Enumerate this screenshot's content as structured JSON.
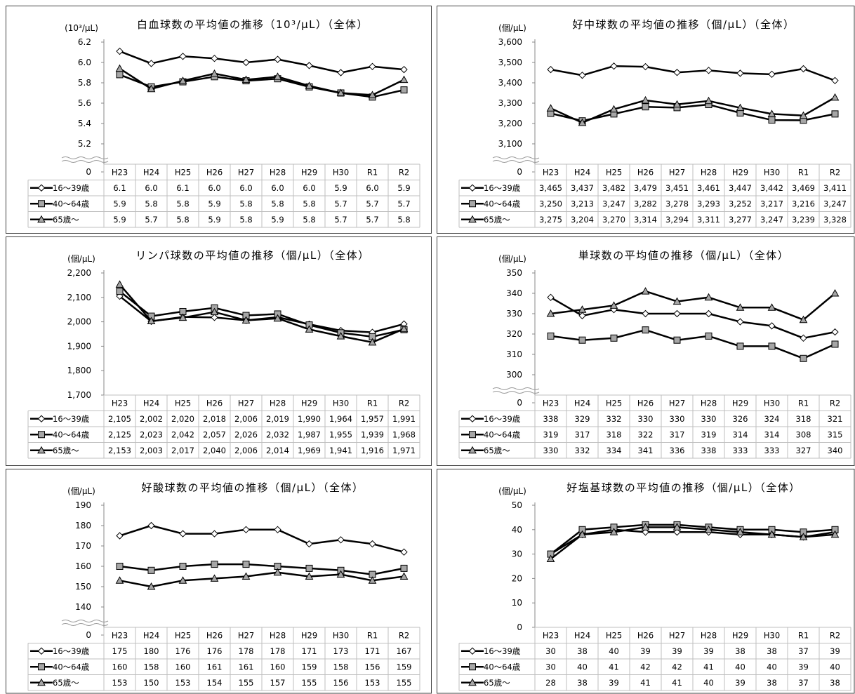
{
  "chart_data": [
    {
      "type": "line",
      "title": "白血球数の平均値の推移（10³/μL）（全体）",
      "ylabel": "(10³/μL)",
      "categories": [
        "H23",
        "H24",
        "H25",
        "H26",
        "H27",
        "H28",
        "H29",
        "H30",
        "R1",
        "R2"
      ],
      "series": [
        {
          "name": "16～39歳",
          "color": "#000000",
          "marker": "diamond",
          "marker_fill": "#ffffff",
          "values": [
            6.11,
            5.99,
            6.06,
            6.04,
            6.0,
            6.03,
            5.97,
            5.9,
            5.96,
            5.93
          ],
          "value_labels": [
            "6.1",
            "6.0",
            "6.1",
            "6.0",
            "6.0",
            "6.0",
            "6.0",
            "5.9",
            "6.0",
            "5.9"
          ]
        },
        {
          "name": "40～64歳",
          "color": "#000000",
          "marker": "square",
          "marker_fill": "#a6a6a6",
          "values": [
            5.88,
            5.76,
            5.81,
            5.86,
            5.82,
            5.84,
            5.76,
            5.7,
            5.66,
            5.73
          ],
          "value_labels": [
            "5.9",
            "5.8",
            "5.8",
            "5.9",
            "5.8",
            "5.8",
            "5.8",
            "5.7",
            "5.7",
            "5.7"
          ]
        },
        {
          "name": "65歳～",
          "color": "#000000",
          "marker": "triangle",
          "marker_fill": "#a6a6a6",
          "values": [
            5.94,
            5.74,
            5.82,
            5.89,
            5.83,
            5.86,
            5.77,
            5.7,
            5.68,
            5.83
          ],
          "value_labels": [
            "5.9",
            "5.7",
            "5.8",
            "5.9",
            "5.8",
            "5.9",
            "5.8",
            "5.7",
            "5.7",
            "5.8"
          ]
        }
      ],
      "ylim": [
        5.0,
        6.2
      ],
      "yticks": [
        0,
        5.2,
        5.4,
        5.6,
        5.8,
        {
          "value": 6,
          "label": "6.0"
        },
        6.2
      ],
      "axis_break": true,
      "grid": false
    },
    {
      "type": "line",
      "title": "好中球数の平均値の推移（個/μL）（全体）",
      "ylabel": "(個/μL)",
      "categories": [
        "H23",
        "H24",
        "H25",
        "H26",
        "H27",
        "H28",
        "H29",
        "H30",
        "R1",
        "R2"
      ],
      "series": [
        {
          "name": "16～39歳",
          "color": "#000000",
          "marker": "diamond",
          "marker_fill": "#ffffff",
          "values": [
            3465,
            3437,
            3482,
            3479,
            3451,
            3461,
            3447,
            3442,
            3469,
            3411
          ],
          "value_labels": [
            "3,465",
            "3,437",
            "3,482",
            "3,479",
            "3,451",
            "3,461",
            "3,447",
            "3,442",
            "3,469",
            "3,411"
          ]
        },
        {
          "name": "40～64歳",
          "color": "#000000",
          "marker": "square",
          "marker_fill": "#a6a6a6",
          "values": [
            3250,
            3213,
            3247,
            3282,
            3278,
            3293,
            3252,
            3217,
            3216,
            3247
          ],
          "value_labels": [
            "3,250",
            "3,213",
            "3,247",
            "3,282",
            "3,278",
            "3,293",
            "3,252",
            "3,217",
            "3,216",
            "3,247"
          ]
        },
        {
          "name": "65歳～",
          "color": "#000000",
          "marker": "triangle",
          "marker_fill": "#a6a6a6",
          "values": [
            3275,
            3204,
            3270,
            3314,
            3294,
            3311,
            3277,
            3247,
            3239,
            3328
          ],
          "value_labels": [
            "3,275",
            "3,204",
            "3,270",
            "3,314",
            "3,294",
            "3,311",
            "3,277",
            "3,247",
            "3,239",
            "3,328"
          ]
        }
      ],
      "ylim": [
        3000,
        3600
      ],
      "yticks": [
        0,
        {
          "value": 3100,
          "label": "3,100"
        },
        {
          "value": 3200,
          "label": "3,200"
        },
        {
          "value": 3300,
          "label": "3,300"
        },
        {
          "value": 3400,
          "label": "3,400"
        },
        {
          "value": 3500,
          "label": "3,500"
        },
        {
          "value": 3600,
          "label": "3,600"
        }
      ],
      "axis_break": true,
      "grid": false
    },
    {
      "type": "line",
      "title": "リンパ球数の平均値の推移（個/μL）（全体）",
      "ylabel": "(個/μL)",
      "categories": [
        "H23",
        "H24",
        "H25",
        "H26",
        "H27",
        "H28",
        "H29",
        "H30",
        "R1",
        "R2"
      ],
      "series": [
        {
          "name": "16～39歳",
          "color": "#000000",
          "marker": "diamond",
          "marker_fill": "#ffffff",
          "values": [
            2105,
            2002,
            2020,
            2018,
            2006,
            2019,
            1990,
            1964,
            1957,
            1991
          ],
          "value_labels": [
            "2,105",
            "2,002",
            "2,020",
            "2,018",
            "2,006",
            "2,019",
            "1,990",
            "1,964",
            "1,957",
            "1,991"
          ]
        },
        {
          "name": "40～64歳",
          "color": "#000000",
          "marker": "square",
          "marker_fill": "#a6a6a6",
          "values": [
            2125,
            2023,
            2042,
            2057,
            2026,
            2032,
            1987,
            1955,
            1939,
            1968
          ],
          "value_labels": [
            "2,125",
            "2,023",
            "2,042",
            "2,057",
            "2,026",
            "2,032",
            "1,987",
            "1,955",
            "1,939",
            "1,968"
          ]
        },
        {
          "name": "65歳～",
          "color": "#000000",
          "marker": "triangle",
          "marker_fill": "#a6a6a6",
          "values": [
            2153,
            2003,
            2017,
            2040,
            2006,
            2014,
            1969,
            1941,
            1916,
            1971
          ],
          "value_labels": [
            "2,153",
            "2,003",
            "2,017",
            "2,040",
            "2,006",
            "2,014",
            "1,969",
            "1,941",
            "1,916",
            "1,971"
          ]
        }
      ],
      "ylim": [
        1700,
        2200
      ],
      "yticks": [
        {
          "value": 1700,
          "label": "1,700"
        },
        {
          "value": 1800,
          "label": "1,800"
        },
        {
          "value": 1900,
          "label": "1,900"
        },
        {
          "value": 2000,
          "label": "2,000"
        },
        {
          "value": 2100,
          "label": "2,100"
        },
        {
          "value": 2200,
          "label": "2,200"
        }
      ],
      "axis_break": false,
      "grid": false
    },
    {
      "type": "line",
      "title": "単球数の平均値の推移（個/μL）（全体）",
      "ylabel": "(個/μL)",
      "categories": [
        "H23",
        "H24",
        "H25",
        "H26",
        "H27",
        "H28",
        "H29",
        "H30",
        "R1",
        "R2"
      ],
      "series": [
        {
          "name": "16～39歳",
          "color": "#000000",
          "marker": "diamond",
          "marker_fill": "#ffffff",
          "values": [
            338,
            329,
            332,
            330,
            330,
            330,
            326,
            324,
            318,
            321
          ]
        },
        {
          "name": "40～64歳",
          "color": "#000000",
          "marker": "square",
          "marker_fill": "#a6a6a6",
          "values": [
            319,
            317,
            318,
            322,
            317,
            319,
            314,
            314,
            308,
            315
          ]
        },
        {
          "name": "65歳～",
          "color": "#000000",
          "marker": "triangle",
          "marker_fill": "#a6a6a6",
          "values": [
            330,
            332,
            334,
            341,
            336,
            338,
            333,
            333,
            327,
            340
          ]
        }
      ],
      "ylim": [
        290,
        350
      ],
      "yticks": [
        0,
        300,
        310,
        320,
        330,
        340,
        350
      ],
      "axis_break": true,
      "grid": false
    },
    {
      "type": "line",
      "title": "好酸球数の平均値の推移（個/μL）（全体）",
      "ylabel": "(個/μL)",
      "categories": [
        "H23",
        "H24",
        "H25",
        "H26",
        "H27",
        "H28",
        "H29",
        "H30",
        "R1",
        "R2"
      ],
      "series": [
        {
          "name": "16～39歳",
          "color": "#000000",
          "marker": "diamond",
          "marker_fill": "#ffffff",
          "values": [
            175,
            180,
            176,
            176,
            178,
            178,
            171,
            173,
            171,
            167
          ]
        },
        {
          "name": "40～64歳",
          "color": "#000000",
          "marker": "square",
          "marker_fill": "#a6a6a6",
          "values": [
            160,
            158,
            160,
            161,
            161,
            160,
            159,
            158,
            156,
            159
          ]
        },
        {
          "name": "65歳～",
          "color": "#000000",
          "marker": "triangle",
          "marker_fill": "#a6a6a6",
          "values": [
            153,
            150,
            153,
            154,
            155,
            157,
            155,
            156,
            153,
            155
          ]
        }
      ],
      "ylim": [
        130,
        190
      ],
      "yticks": [
        0,
        140,
        150,
        160,
        170,
        180,
        190
      ],
      "axis_break": true,
      "grid": false
    },
    {
      "type": "line",
      "title": "好塩基球数の平均値の推移（個/μL）（全体）",
      "ylabel": "(個/μL)",
      "categories": [
        "H23",
        "H24",
        "H25",
        "H26",
        "H27",
        "H28",
        "H29",
        "H30",
        "R1",
        "R2"
      ],
      "series": [
        {
          "name": "16～39歳",
          "color": "#000000",
          "marker": "diamond",
          "marker_fill": "#ffffff",
          "values": [
            30,
            38,
            40,
            39,
            39,
            39,
            38,
            38,
            37,
            39
          ]
        },
        {
          "name": "40～64歳",
          "color": "#000000",
          "marker": "square",
          "marker_fill": "#a6a6a6",
          "values": [
            30,
            40,
            41,
            42,
            42,
            41,
            40,
            40,
            39,
            40
          ]
        },
        {
          "name": "65歳～",
          "color": "#000000",
          "marker": "triangle",
          "marker_fill": "#a6a6a6",
          "values": [
            28,
            38,
            39,
            41,
            41,
            40,
            39,
            38,
            37,
            38
          ]
        }
      ],
      "ylim": [
        0,
        50
      ],
      "yticks": [
        0,
        10,
        20,
        30,
        40,
        50
      ],
      "axis_break": false,
      "grid": false
    }
  ]
}
